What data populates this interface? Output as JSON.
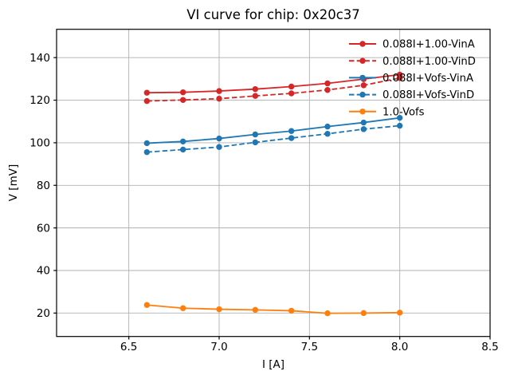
{
  "figure": {
    "background": "#ffffff",
    "spine_color": "#000000",
    "tick_color": "#000000"
  },
  "chart_data": {
    "type": "line",
    "title": "VI curve for chip: 0x20c37",
    "xlabel": "I [A]",
    "ylabel": "V [mV]",
    "xlim": [
      6.1,
      8.5
    ],
    "ylim": [
      9,
      153.3
    ],
    "xticks": [
      6.5,
      7.0,
      7.5,
      8.0,
      8.5
    ],
    "xtick_labels": [
      "6.5",
      "7.0",
      "7.5",
      "8.0",
      "8.5"
    ],
    "yticks": [
      20,
      40,
      60,
      80,
      100,
      120,
      140
    ],
    "ytick_labels": [
      "20",
      "40",
      "60",
      "80",
      "100",
      "120",
      "140"
    ],
    "grid": true,
    "grid_color": "#b0b0b0",
    "legend_position": "upper right",
    "legend_frame": false,
    "x": [
      6.6,
      6.8,
      7.0,
      7.2,
      7.4,
      7.6,
      7.8,
      8.0
    ],
    "series": [
      {
        "name": "0.088I+1.00-VinA",
        "color": "#d62728",
        "style": "solid",
        "marker": "circle",
        "values": [
          123.5,
          123.7,
          124.3,
          125.2,
          126.4,
          127.9,
          129.9,
          132.0
        ]
      },
      {
        "name": "0.088I+1.00-VinD",
        "color": "#d62728",
        "style": "dashed",
        "marker": "circle",
        "values": [
          119.6,
          120.1,
          120.7,
          122.0,
          123.2,
          124.8,
          127.0,
          130.4
        ]
      },
      {
        "name": "0.088I+Vofs-VinA",
        "color": "#1f77b4",
        "style": "solid",
        "marker": "circle",
        "values": [
          99.8,
          100.6,
          102.0,
          103.9,
          105.5,
          107.6,
          109.5,
          111.7
        ]
      },
      {
        "name": "0.088I+Vofs-VinD",
        "color": "#1f77b4",
        "style": "dashed",
        "marker": "circle",
        "values": [
          95.6,
          96.8,
          98.0,
          100.2,
          102.2,
          104.2,
          106.4,
          108.0
        ]
      },
      {
        "name": "1.0-Vofs",
        "color": "#ff7f0e",
        "style": "solid",
        "marker": "circle",
        "values": [
          23.8,
          22.3,
          21.8,
          21.5,
          21.1,
          19.9,
          20.0,
          20.2
        ]
      }
    ]
  }
}
